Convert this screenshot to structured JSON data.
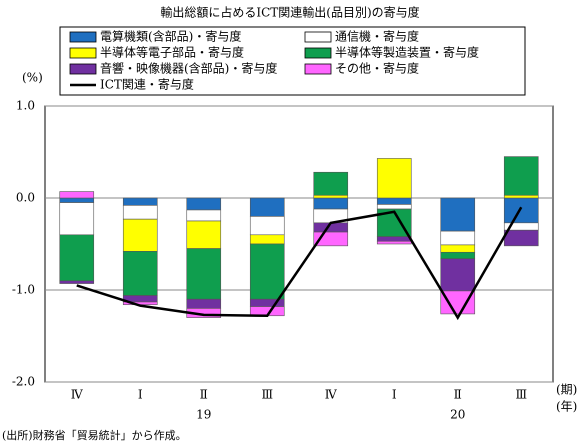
{
  "chart_data": {
    "type": "bar",
    "title": "輸出総額に占めるICT関連輸出(品目別)の寄与度",
    "y_unit": "(%)",
    "x_unit_period": "(期)",
    "x_unit_year": "(年)",
    "source": "(出所)財務省「貿易統計」から作成。",
    "categories": [
      "Ⅳ",
      "Ⅰ",
      "Ⅱ",
      "Ⅲ",
      "Ⅳ",
      "Ⅰ",
      "Ⅱ",
      "Ⅲ"
    ],
    "years": [
      "19",
      "20"
    ],
    "ylim": [
      -2.0,
      1.0
    ],
    "yticks": [
      {
        "value": 1.0,
        "label": "1.0"
      },
      {
        "value": 0.0,
        "label": "0.0"
      },
      {
        "value": -1.0,
        "label": "-1.0"
      },
      {
        "value": -2.0,
        "label": "-2.0"
      }
    ],
    "grid": true,
    "series": [
      {
        "name": "電算機類(含部品)・寄与度",
        "color": "#1f6fc0",
        "values": [
          -0.05,
          -0.08,
          -0.13,
          -0.2,
          -0.12,
          -0.07,
          -0.36,
          -0.27
        ]
      },
      {
        "name": "通信機・寄与度",
        "color": "#ffffff",
        "values": [
          -0.35,
          -0.15,
          -0.12,
          -0.2,
          -0.15,
          -0.05,
          -0.15,
          -0.08
        ]
      },
      {
        "name": "半導体等電子部品・寄与度",
        "color": "#ffff00",
        "values": [
          0.0,
          -0.35,
          -0.3,
          -0.1,
          0.03,
          0.43,
          -0.08,
          0.03
        ]
      },
      {
        "name": "半導体等製造装置・寄与度",
        "color": "#0f9e4e",
        "values": [
          -0.5,
          -0.48,
          -0.55,
          -0.6,
          0.25,
          -0.3,
          -0.07,
          0.42
        ]
      },
      {
        "name": "音響・映像機器(含部品)・寄与度",
        "color": "#7030a0",
        "values": [
          -0.03,
          -0.07,
          -0.1,
          -0.08,
          -0.1,
          -0.05,
          -0.35,
          -0.17
        ]
      },
      {
        "name": "その他・寄与度",
        "color": "#ff66ff",
        "values": [
          0.07,
          -0.03,
          -0.1,
          -0.1,
          -0.15,
          -0.03,
          -0.25,
          0.0
        ]
      },
      {
        "name": "ICT関連・寄与度",
        "color": "#000000",
        "type": "line",
        "values": [
          -0.95,
          -1.17,
          -1.27,
          -1.28,
          -0.27,
          -0.15,
          -1.3,
          -0.1
        ]
      }
    ]
  }
}
